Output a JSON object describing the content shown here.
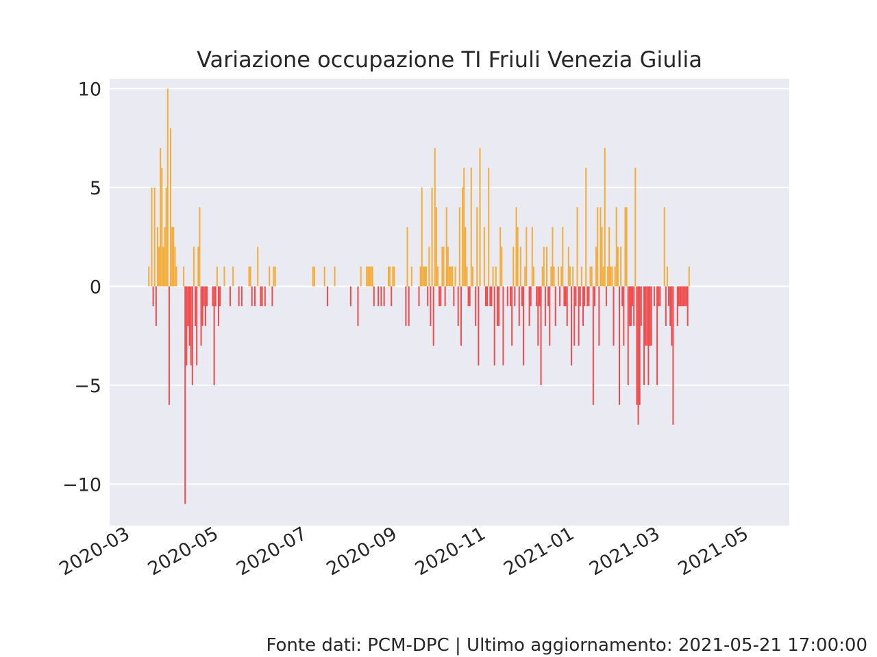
{
  "title": "Variazione occupazione TI Friuli Venezia Giulia",
  "footer": "Fonte dati: PCM-DPC | Ultimo aggiornamento: 2021-05-21 17:00:00",
  "colors": {
    "background": "#eaeaf2",
    "grid": "#ffffff",
    "positive": "#f5a623",
    "negative": "#f03a3a"
  },
  "chart_data": {
    "type": "bar",
    "title": "Variazione occupazione TI Friuli Venezia Giulia",
    "xlabel": "",
    "ylabel": "",
    "ylim": [
      -12.1,
      10.5
    ],
    "xlim": [
      "2020-02-20",
      "2021-06-02"
    ],
    "grid": true,
    "y_ticks": [
      10,
      5,
      0,
      -5,
      -10
    ],
    "y_tick_labels": [
      "10",
      "5",
      "0",
      "−5",
      "−10"
    ],
    "x_ticks": [
      "2020-03-01",
      "2020-05-01",
      "2020-07-01",
      "2020-09-01",
      "2020-11-01",
      "2021-01-01",
      "2021-03-01",
      "2021-05-01"
    ],
    "x_tick_labels": [
      "2020-03",
      "2020-05",
      "2020-07",
      "2020-09",
      "2020-11",
      "2021-01",
      "2021-03",
      "2021-05"
    ],
    "start_date": "2020-02-24",
    "daily_values": [
      0,
      0,
      0,
      0,
      0,
      0,
      0,
      0,
      0,
      0,
      0,
      0,
      0,
      0,
      0,
      0,
      0,
      0,
      0,
      0,
      0,
      0,
      0,
      1,
      0,
      5,
      -1,
      5,
      -2,
      3,
      2,
      7,
      6,
      2,
      3,
      5,
      10,
      -6,
      8,
      3,
      3,
      2,
      1,
      0,
      0,
      0,
      0,
      1,
      -11,
      -4,
      -2,
      -3,
      -4,
      -5,
      2,
      -2,
      -4,
      2,
      4,
      -3,
      -2,
      -1,
      -2,
      -1,
      0,
      0,
      0,
      -1,
      -5,
      -1,
      1,
      -2,
      -1,
      0,
      0,
      1,
      0,
      0,
      0,
      -1,
      0,
      1,
      0,
      0,
      0,
      -1,
      0,
      -1,
      0,
      0,
      0,
      0,
      1,
      1,
      -1,
      0,
      -1,
      0,
      2,
      0,
      -1,
      -1,
      0,
      -1,
      0,
      0,
      1,
      0,
      -1,
      1,
      1,
      0,
      0,
      0,
      0,
      0,
      0,
      0,
      0,
      0,
      0,
      0,
      0,
      0,
      0,
      0,
      0,
      0,
      0,
      0,
      0,
      0,
      0,
      0,
      0,
      0,
      1,
      1,
      0,
      0,
      0,
      0,
      0,
      0,
      1,
      0,
      -1,
      0,
      0,
      0,
      0,
      1,
      0,
      0,
      0,
      0,
      0,
      0,
      0,
      0,
      0,
      0,
      -1,
      0,
      0,
      0,
      0,
      -2,
      0,
      1,
      0,
      0,
      0,
      1,
      1,
      1,
      1,
      1,
      -1,
      0,
      0,
      -1,
      0,
      -1,
      0,
      -1,
      0,
      0,
      1,
      1,
      -1,
      1,
      1,
      0,
      0,
      0,
      0,
      0,
      0,
      0,
      -2,
      3,
      -2,
      0,
      1,
      0,
      0,
      0,
      0,
      -1,
      1,
      5,
      1,
      1,
      1,
      -1,
      2,
      -2,
      5,
      -3,
      7,
      4,
      1,
      -1,
      -1,
      2,
      2,
      -1,
      4,
      2,
      1,
      1,
      1,
      -1,
      1,
      0,
      -2,
      4,
      -3,
      5,
      6,
      3,
      1,
      -1,
      -1,
      6,
      1,
      0,
      -2,
      4,
      -4,
      7,
      0,
      0,
      3,
      -1,
      -1,
      6,
      -1,
      -1,
      1,
      -4,
      1,
      -2,
      -2,
      3,
      2,
      -4,
      0,
      0,
      -1,
      0,
      -1,
      -3,
      2,
      -1,
      4,
      3,
      -2,
      2,
      -1,
      -4,
      1,
      3,
      0,
      -2,
      -1,
      3,
      1,
      0,
      -1,
      -3,
      -1,
      -5,
      1,
      2,
      -2,
      2,
      -1,
      -3,
      1,
      3,
      1,
      -2,
      0,
      1,
      -1,
      1,
      3,
      -1,
      -1,
      -2,
      2,
      1,
      -4,
      1,
      -3,
      -1,
      4,
      -3,
      -1,
      1,
      -2,
      -1,
      6,
      -1,
      -1,
      1,
      1,
      -6,
      -1,
      2,
      4,
      -3,
      4,
      3,
      1,
      7,
      -1,
      1,
      3,
      1,
      1,
      -3,
      1,
      4,
      2,
      -6,
      2,
      -1,
      -3,
      4,
      4,
      -5,
      -2,
      -2,
      -1,
      -2,
      6,
      -6,
      -7,
      -6,
      -2,
      0,
      -5,
      -3,
      -3,
      -5,
      -3,
      -3,
      0,
      -1,
      0,
      -5,
      -1,
      -1,
      0,
      0,
      4,
      -2,
      1,
      -1,
      -2,
      -3,
      -7,
      0,
      0,
      -2,
      -1,
      -1,
      -1,
      -1,
      -1,
      -1,
      -2,
      1
    ]
  }
}
